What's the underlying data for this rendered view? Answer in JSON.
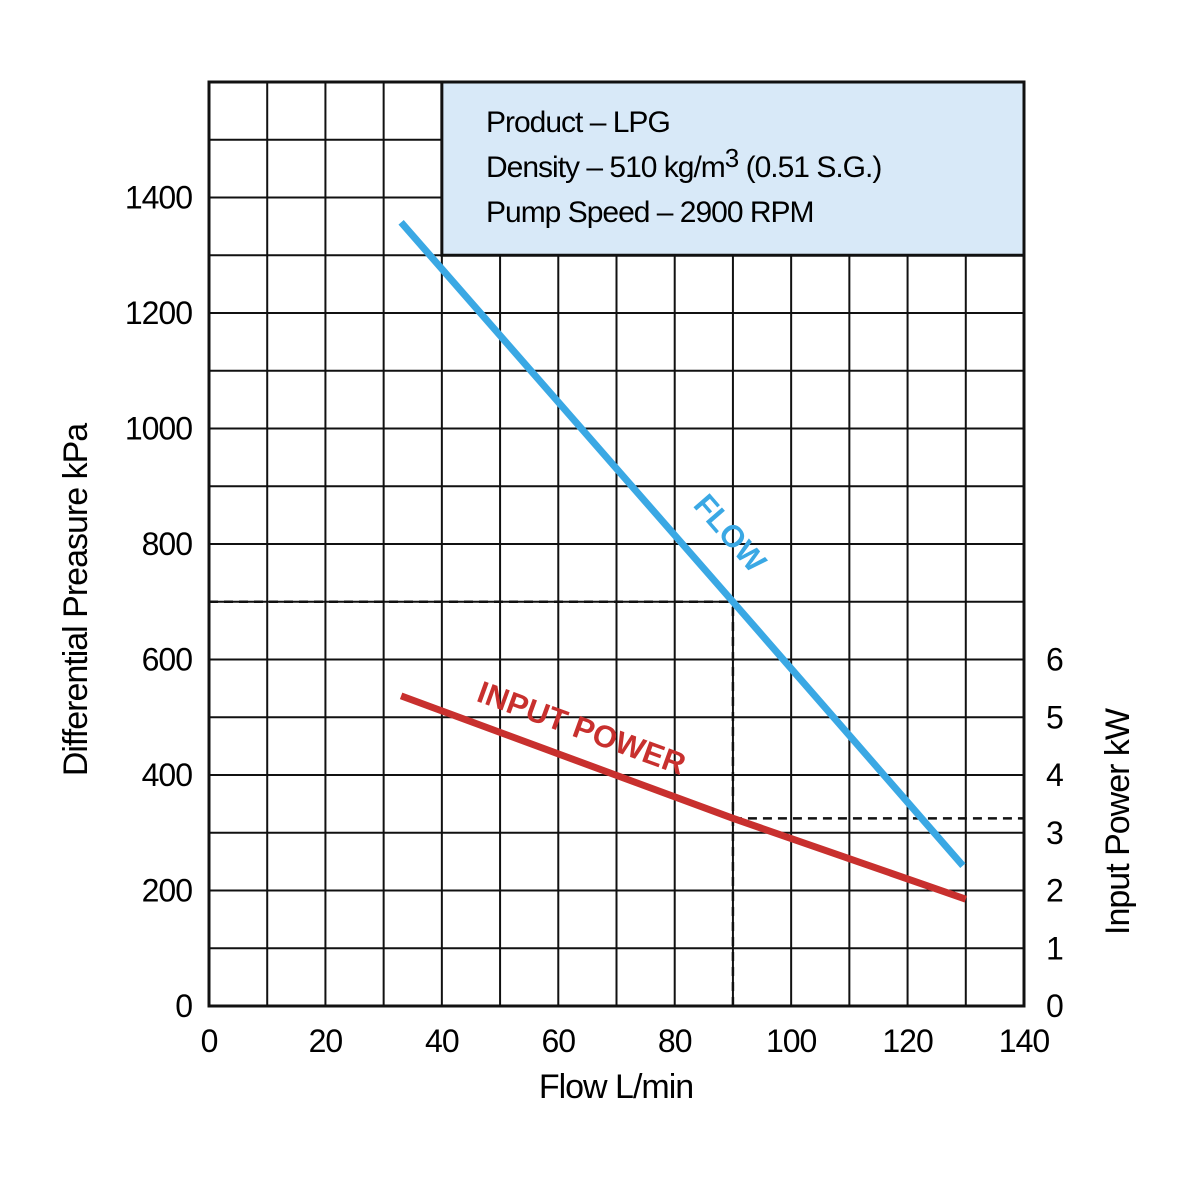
{
  "chart_data": {
    "type": "line",
    "xlabel": "Flow L/min",
    "ylabel": "Differential Preasure kPa",
    "y2label": "Input Power kW",
    "xlim": [
      0,
      140
    ],
    "ylim": [
      0,
      1600
    ],
    "y2lim": [
      0,
      16
    ],
    "xticks": [
      0,
      20,
      40,
      60,
      80,
      100,
      120,
      140
    ],
    "yticks": [
      0,
      200,
      400,
      600,
      800,
      1000,
      1200,
      1400
    ],
    "y2ticks": [
      0,
      1,
      2,
      3,
      4,
      5,
      6
    ],
    "grid": true,
    "x_grid_step": 10,
    "y_grid_step": 100,
    "info_box": {
      "lines": [
        "Product – LPG",
        "Density – 510 kg/m",
        "Pump Speed – 2900 RPM"
      ],
      "superscript": "3",
      "density_suffix": " (0.51 S.G.)",
      "fill": "#d8e9f8"
    },
    "series": [
      {
        "name": "FLOW",
        "axis": "left",
        "color": "#3aa8e4",
        "x": [
          33,
          90,
          129.5
        ],
        "y": [
          1357,
          700,
          243
        ]
      },
      {
        "name": "INPUT POWER",
        "axis": "right",
        "color": "#c8302e",
        "x": [
          33,
          90,
          130
        ],
        "y": [
          5.37,
          3.25,
          1.85
        ]
      }
    ],
    "reference_lines": [
      {
        "type": "horizontal",
        "axis": "left",
        "value": 700,
        "from_x": 0,
        "to_x": 90
      },
      {
        "type": "vertical",
        "x": 90,
        "from_y": 0,
        "to_y": 700
      },
      {
        "type": "horizontal",
        "axis": "right",
        "value": 3.25,
        "from_x": 90,
        "to_x": 140
      }
    ]
  }
}
